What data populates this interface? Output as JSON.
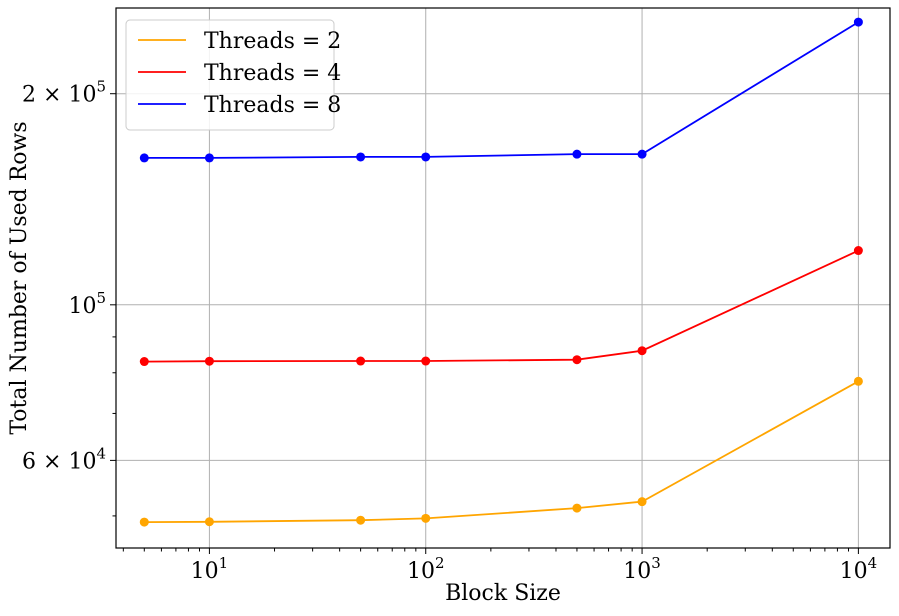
{
  "chart_data": {
    "type": "line",
    "title": "",
    "xlabel": "Block Size",
    "ylabel": "Total Number of Used Rows",
    "xscale": "log",
    "yscale": "log",
    "xlim": [
      3.7,
      14000
    ],
    "ylim": [
      45000,
      265000
    ],
    "grid": true,
    "legend_position": "top-left",
    "x": [
      5,
      10,
      50,
      100,
      500,
      1000,
      10000
    ],
    "x_ticks": [
      {
        "value": 10,
        "base": "10",
        "exp": "1"
      },
      {
        "value": 100,
        "base": "10",
        "exp": "2"
      },
      {
        "value": 1000,
        "base": "10",
        "exp": "3"
      },
      {
        "value": 10000,
        "base": "10",
        "exp": "4"
      }
    ],
    "y_ticks": [
      {
        "value": 60000,
        "base": "6 × 10",
        "exp": "4"
      },
      {
        "value": 100000,
        "base": "10",
        "exp": "5"
      },
      {
        "value": 200000,
        "base": "2 × 10",
        "exp": "5"
      }
    ],
    "series": [
      {
        "name": "Threads = 2",
        "color": "#ffa500",
        "values": [
          49000,
          49050,
          49300,
          49600,
          51300,
          52400,
          77800
        ]
      },
      {
        "name": "Threads = 4",
        "color": "#ff0000",
        "values": [
          83000,
          83100,
          83150,
          83150,
          83500,
          86000,
          119500
        ]
      },
      {
        "name": "Threads = 8",
        "color": "#0000ff",
        "values": [
          162000,
          162000,
          162500,
          162500,
          164000,
          164000,
          253000
        ]
      }
    ]
  }
}
